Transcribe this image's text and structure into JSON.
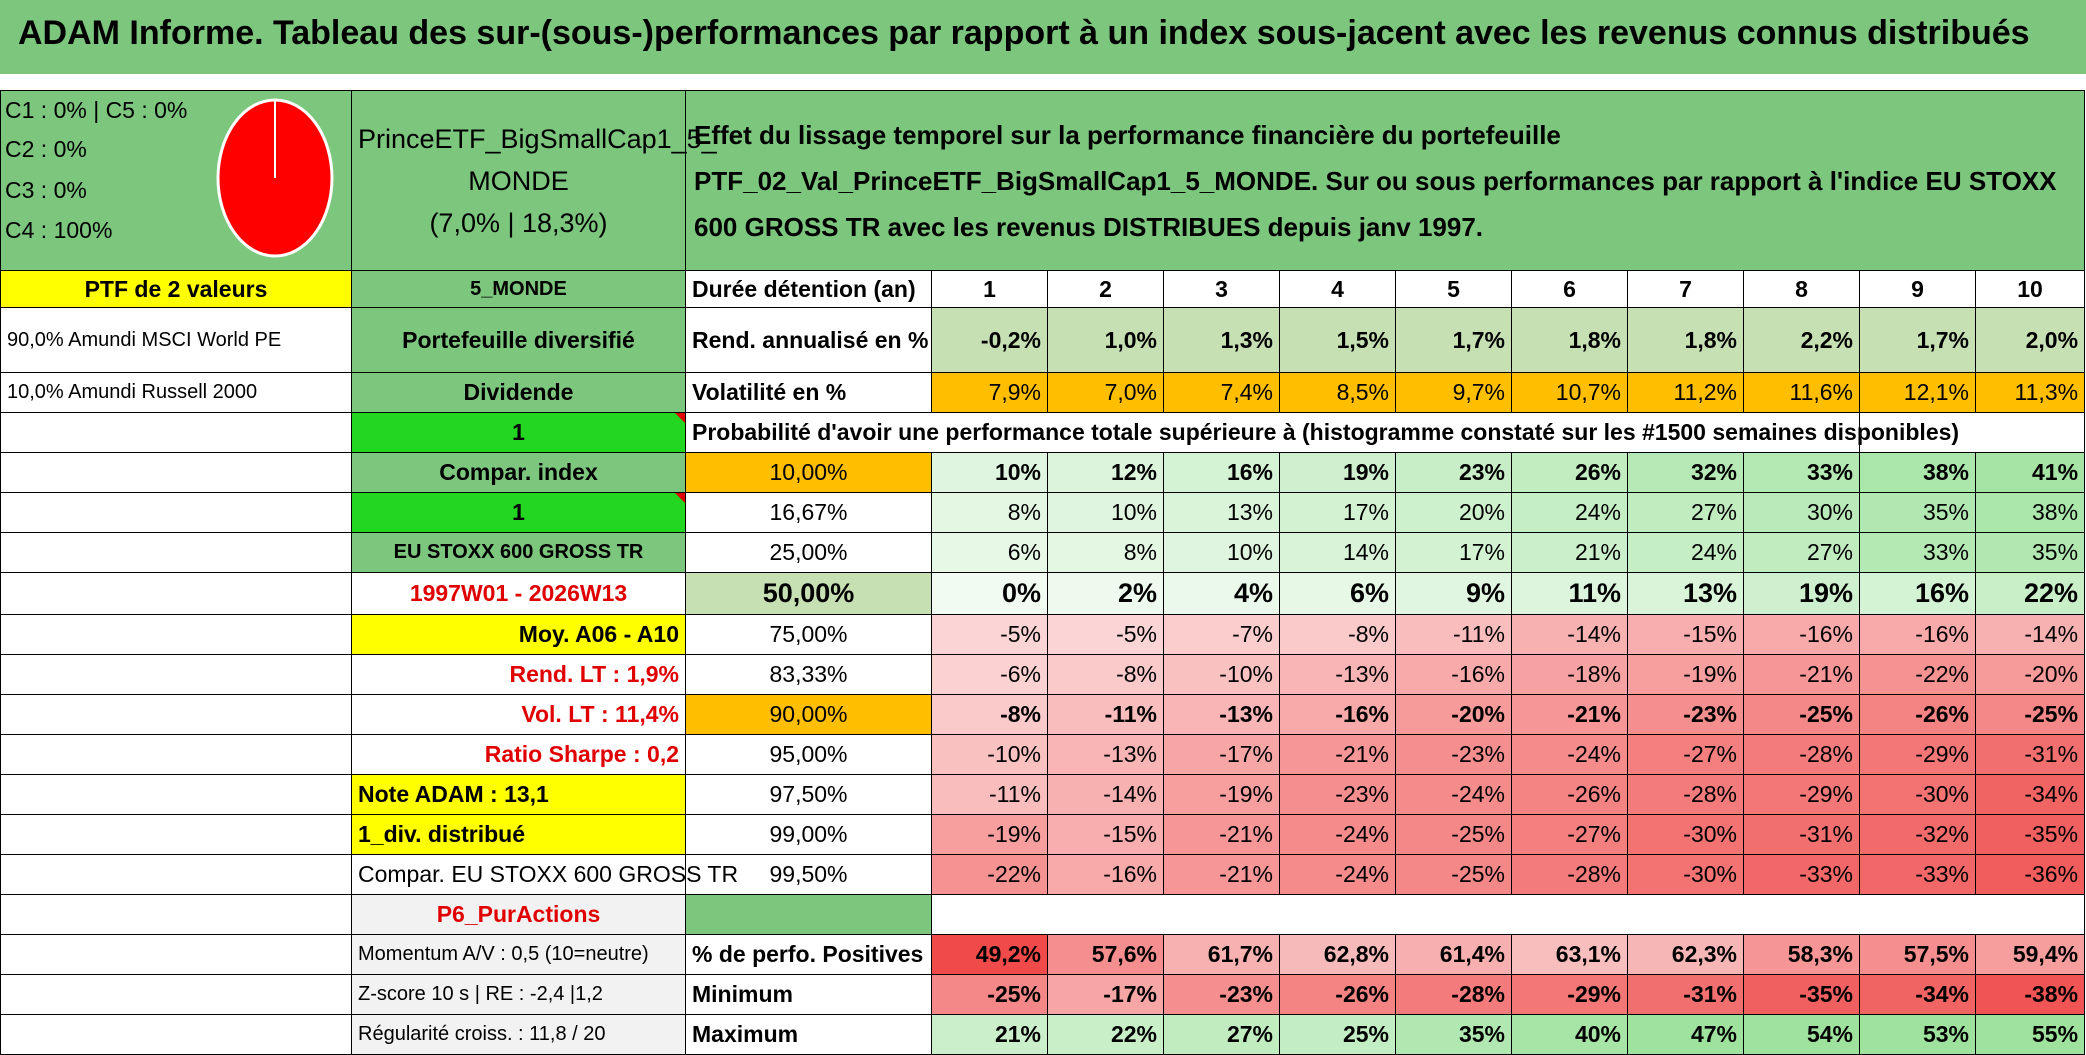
{
  "title": "ADAM Informe. Tableau des sur-(sous-)performances par rapport à un index sous-jacent avec les revenus connus distribués",
  "allocation": [
    "C1 : 0% | C5 : 0%",
    "C2 : 0%",
    "C3 : 0%",
    "C4 : 100%"
  ],
  "pie_color": "#ff0000",
  "fund_header": {
    "line1": "PrinceETF_BigSmallCap1_5_",
    "line2": "MONDE",
    "line3": "(7,0% | 18,3%)"
  },
  "description": "Effet du lissage temporel sur la performance financière du portefeuille PTF_02_Val_PrinceETF_BigSmallCap1_5_MONDE. Sur ou sous performances par rapport à l'indice EU STOXX 600 GROSS TR avec les revenus DISTRIBUES depuis janv 1997.",
  "col_a": [
    "PTF de 2 valeurs",
    "90,0% Amundi MSCI World PE",
    "10,0% Amundi Russell 2000"
  ],
  "col_b": [
    "5_MONDE",
    "Portefeuille diversifié",
    "Dividende",
    "1",
    "Compar. index",
    "1",
    "EU STOXX 600 GROSS TR",
    "1997W01 - 2026W13",
    "Moy. A06 - A10",
    "Rend. LT : 1,9%",
    "Vol. LT : 11,4%",
    "Ratio Sharpe : 0,2",
    "Note ADAM : 13,1",
    "1_div. distribué",
    "Compar. EU STOXX 600 GROSS TR",
    "P6_PurActions",
    "Momentum A/V : 0,5 (10=neutre)",
    "Z-score 10 s | RE : -2,4 |1,2",
    "Régularité croiss. : 11,8 / 20"
  ],
  "years": [
    "1",
    "2",
    "3",
    "4",
    "5",
    "6",
    "7",
    "8",
    "9",
    "10"
  ],
  "labels": {
    "duree": "Durée détention (an)",
    "rend": "Rend. annualisé en %",
    "vol": "Volatilité en %",
    "proba": "Probabilité d'avoir une performance totale supérieure à (histogramme constaté sur les #1500 semaines disponibles)",
    "pos": "% de perfo. Positives",
    "min": "Minimum",
    "max": "Maximum"
  },
  "rend": [
    "-0,2%",
    "1,0%",
    "1,3%",
    "1,5%",
    "1,7%",
    "1,8%",
    "1,8%",
    "2,2%",
    "1,7%",
    "2,0%"
  ],
  "vol": [
    "7,9%",
    "7,0%",
    "7,4%",
    "8,5%",
    "9,7%",
    "10,7%",
    "11,2%",
    "11,6%",
    "12,1%",
    "11,3%"
  ],
  "quantiles": [
    {
      "q": "10,00%",
      "v": [
        "10%",
        "12%",
        "16%",
        "19%",
        "23%",
        "26%",
        "32%",
        "33%",
        "38%",
        "41%"
      ]
    },
    {
      "q": "16,67%",
      "v": [
        "8%",
        "10%",
        "13%",
        "17%",
        "20%",
        "24%",
        "27%",
        "30%",
        "35%",
        "38%"
      ]
    },
    {
      "q": "25,00%",
      "v": [
        "6%",
        "8%",
        "10%",
        "14%",
        "17%",
        "21%",
        "24%",
        "27%",
        "33%",
        "35%"
      ]
    },
    {
      "q": "50,00%",
      "v": [
        "0%",
        "2%",
        "4%",
        "6%",
        "9%",
        "11%",
        "13%",
        "19%",
        "16%",
        "22%"
      ]
    },
    {
      "q": "75,00%",
      "v": [
        "-5%",
        "-5%",
        "-7%",
        "-8%",
        "-11%",
        "-14%",
        "-15%",
        "-16%",
        "-16%",
        "-14%"
      ]
    },
    {
      "q": "83,33%",
      "v": [
        "-6%",
        "-8%",
        "-10%",
        "-13%",
        "-16%",
        "-18%",
        "-19%",
        "-21%",
        "-22%",
        "-20%"
      ]
    },
    {
      "q": "90,00%",
      "v": [
        "-8%",
        "-11%",
        "-13%",
        "-16%",
        "-20%",
        "-21%",
        "-23%",
        "-25%",
        "-26%",
        "-25%"
      ]
    },
    {
      "q": "95,00%",
      "v": [
        "-10%",
        "-13%",
        "-17%",
        "-21%",
        "-23%",
        "-24%",
        "-27%",
        "-28%",
        "-29%",
        "-31%"
      ]
    },
    {
      "q": "97,50%",
      "v": [
        "-11%",
        "-14%",
        "-19%",
        "-23%",
        "-24%",
        "-26%",
        "-28%",
        "-29%",
        "-30%",
        "-34%"
      ]
    },
    {
      "q": "99,00%",
      "v": [
        "-19%",
        "-15%",
        "-21%",
        "-24%",
        "-25%",
        "-27%",
        "-30%",
        "-31%",
        "-32%",
        "-35%"
      ]
    },
    {
      "q": "99,50%",
      "v": [
        "-22%",
        "-16%",
        "-21%",
        "-24%",
        "-25%",
        "-28%",
        "-30%",
        "-33%",
        "-33%",
        "-36%"
      ]
    }
  ],
  "pos": [
    "49,2%",
    "57,6%",
    "61,7%",
    "62,8%",
    "61,4%",
    "63,1%",
    "62,3%",
    "58,3%",
    "57,5%",
    "59,4%"
  ],
  "min": [
    "-25%",
    "-17%",
    "-23%",
    "-26%",
    "-28%",
    "-29%",
    "-31%",
    "-35%",
    "-34%",
    "-38%"
  ],
  "max": [
    "21%",
    "22%",
    "27%",
    "25%",
    "35%",
    "40%",
    "47%",
    "54%",
    "53%",
    "55%"
  ]
}
